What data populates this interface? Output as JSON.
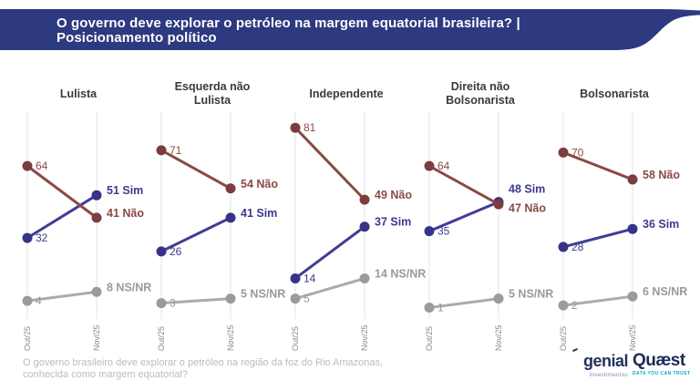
{
  "header": {
    "title_line1": "O governo deve explorar o petróleo na margem equatorial brasileira? |",
    "title_line2": "Posicionamento político",
    "bg_color": "#2d3a80",
    "text_color": "#ffffff"
  },
  "chart_data": {
    "type": "line",
    "subtype": "slope-chart",
    "x": [
      "Out/25",
      "Nov/25"
    ],
    "ylim": [
      0,
      100
    ],
    "grid": "vertical-only",
    "legend_position": "inline-right-labels",
    "series_styles": {
      "Não": {
        "line": "#8a4a45",
        "dot": "#7d3c3e",
        "label": "#8a4a45"
      },
      "Sim": {
        "line": "#403e94",
        "dot": "#363389",
        "label": "#3c3a8e"
      },
      "NS/NR": {
        "line": "#ababab",
        "dot": "#9b9b9b",
        "label": "#9a9a9a"
      }
    },
    "panels": [
      {
        "title_lines": [
          "Lulista"
        ],
        "series": [
          {
            "name": "Não",
            "values": [
              64,
              41
            ]
          },
          {
            "name": "Sim",
            "values": [
              32,
              51
            ]
          },
          {
            "name": "NS/NR",
            "values": [
              4,
              8
            ]
          }
        ]
      },
      {
        "title_lines": [
          "Esquerda não",
          "Lulista"
        ],
        "series": [
          {
            "name": "Não",
            "values": [
              71,
              54
            ]
          },
          {
            "name": "Sim",
            "values": [
              26,
              41
            ]
          },
          {
            "name": "NS/NR",
            "values": [
              3,
              5
            ]
          }
        ]
      },
      {
        "title_lines": [
          "Independente"
        ],
        "series": [
          {
            "name": "Não",
            "values": [
              81,
              49
            ]
          },
          {
            "name": "Sim",
            "values": [
              14,
              37
            ]
          },
          {
            "name": "NS/NR",
            "values": [
              5,
              14
            ]
          }
        ]
      },
      {
        "title_lines": [
          "Direita não",
          "Bolsonarista"
        ],
        "series": [
          {
            "name": "Não",
            "values": [
              64,
              47
            ]
          },
          {
            "name": "Sim",
            "values": [
              35,
              48
            ]
          },
          {
            "name": "NS/NR",
            "values": [
              1,
              5
            ]
          }
        ]
      },
      {
        "title_lines": [
          "Bolsonarista"
        ],
        "series": [
          {
            "name": "Não",
            "values": [
              70,
              58
            ]
          },
          {
            "name": "Sim",
            "values": [
              28,
              36
            ]
          },
          {
            "name": "NS/NR",
            "values": [
              2,
              6
            ]
          }
        ]
      }
    ]
  },
  "footer": {
    "question_line1": "O governo brasileiro deve explorar o petróleo na região da foz do Rio Amazonas,",
    "question_line2": "conhecida como margem equatorial?",
    "logos": {
      "genial": {
        "name": "genial",
        "sub": "investimentos",
        "color": "#23315f",
        "sub_color": "#8492ad"
      },
      "quaest": {
        "name": "Quæst",
        "tagline": "DATA YOU CAN TRUST",
        "color": "#1c2a58",
        "tagline_color": "#00abc8"
      }
    }
  }
}
